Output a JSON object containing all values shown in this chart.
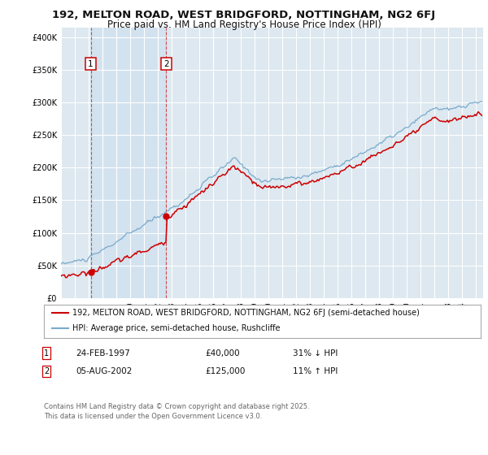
{
  "title": "192, MELTON ROAD, WEST BRIDGFORD, NOTTINGHAM, NG2 6FJ",
  "subtitle": "Price paid vs. HM Land Registry's House Price Index (HPI)",
  "ylabel_ticks": [
    "£0",
    "£50K",
    "£100K",
    "£150K",
    "£200K",
    "£250K",
    "£300K",
    "£350K",
    "£400K"
  ],
  "ytick_values": [
    0,
    50000,
    100000,
    150000,
    200000,
    250000,
    300000,
    350000,
    400000
  ],
  "ylim": [
    0,
    415000
  ],
  "xlim_start": 1995.0,
  "xlim_end": 2025.5,
  "background_color": "#ffffff",
  "plot_bg_color": "#dde8f0",
  "grid_color": "#ffffff",
  "red_line_color": "#cc0000",
  "blue_line_color": "#7aaacc",
  "marker1_date": 1997.15,
  "marker1_value": 40000,
  "marker2_date": 2002.6,
  "marker2_value": 125000,
  "legend_label_red": "192, MELTON ROAD, WEST BRIDGFORD, NOTTINGHAM, NG2 6FJ (semi-detached house)",
  "legend_label_blue": "HPI: Average price, semi-detached house, Rushcliffe",
  "footer": "Contains HM Land Registry data © Crown copyright and database right 2025.\nThis data is licensed under the Open Government Licence v3.0.",
  "title_fontsize": 9.5,
  "subtitle_fontsize": 8.5,
  "tick_fontsize": 7,
  "legend_fontsize": 7,
  "footer_fontsize": 6
}
